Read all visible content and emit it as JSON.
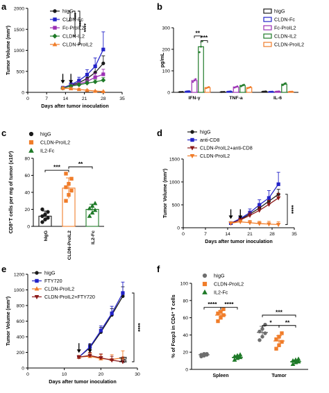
{
  "colors": {
    "black": "#1a1a1a",
    "blue": "#2323c8",
    "purple": "#9b30b4",
    "green": "#1f7a28",
    "orange": "#f07d2a",
    "darkred": "#8c1a1a"
  },
  "chart_data": [
    {
      "panel": "a",
      "type": "line",
      "xlabel": "Days after tumor inoculation",
      "ylabel": "Tumor Volume (mm³)",
      "xlim": [
        0,
        35
      ],
      "ylim": [
        0,
        2000
      ],
      "xticks": [
        "0",
        "7",
        "14",
        "21",
        "28",
        "35"
      ],
      "yticks": [
        "0",
        "500",
        "1000",
        "1500",
        "2000"
      ],
      "x": [
        13,
        16,
        19,
        22,
        25,
        28
      ],
      "arrows_x": [
        13,
        16
      ],
      "significance": [
        "***",
        "***",
        "****"
      ],
      "series": [
        {
          "name": "hIgG",
          "color": "#1a1a1a",
          "marker": "circle",
          "values": [
            110,
            170,
            230,
            330,
            470,
            690
          ],
          "err": [
            20,
            40,
            60,
            80,
            120,
            180
          ]
        },
        {
          "name": "CLDN-Fc",
          "color": "#2323c8",
          "marker": "square",
          "values": [
            110,
            180,
            280,
            420,
            620,
            1020
          ],
          "err": [
            20,
            50,
            80,
            120,
            200,
            420
          ]
        },
        {
          "name": "Fc-ProIL2",
          "color": "#9b30b4",
          "marker": "square",
          "values": [
            100,
            160,
            200,
            260,
            360,
            430
          ],
          "err": [
            20,
            40,
            50,
            70,
            90,
            120
          ]
        },
        {
          "name": "CLDN-IL2",
          "color": "#1f7a28",
          "marker": "diamond",
          "values": [
            100,
            150,
            180,
            220,
            250,
            290
          ],
          "err": [
            20,
            30,
            40,
            50,
            50,
            60
          ]
        },
        {
          "name": "CLDN-ProIL2",
          "color": "#f07d2a",
          "marker": "triangle",
          "values": [
            100,
            90,
            70,
            50,
            30,
            20
          ],
          "err": [
            20,
            20,
            20,
            15,
            10,
            10
          ]
        }
      ]
    },
    {
      "panel": "b",
      "type": "bar",
      "ylabel": "pg/mL",
      "ylim": [
        0,
        300
      ],
      "yticks": [
        "0",
        "100",
        "200",
        "300"
      ],
      "categories": [
        "IFN-γ",
        "TNF-a",
        "IL-6"
      ],
      "significance": [
        "**",
        "***"
      ],
      "series": [
        {
          "name": "hIgG",
          "color": "#1a1a1a",
          "values": [
            2,
            2,
            4
          ]
        },
        {
          "name": "CLDN-Fc",
          "color": "#2323c8",
          "values": [
            5,
            4,
            3
          ]
        },
        {
          "name": "Fc-ProIL2",
          "color": "#9b30b4",
          "values": [
            55,
            25,
            4
          ]
        },
        {
          "name": "CLDN-IL2",
          "color": "#1f7a28",
          "values": [
            212,
            32,
            38
          ]
        },
        {
          "name": "CLDN-ProIL2",
          "color": "#f07d2a",
          "values": [
            22,
            22,
            3
          ]
        }
      ]
    },
    {
      "panel": "c",
      "type": "scatter",
      "ylabel": "CD8⁺T cells per mg of tumor (x10²)",
      "ylim": [
        0,
        80
      ],
      "yticks": [
        "0",
        "20",
        "40",
        "60",
        "80"
      ],
      "categories": [
        "hIgG",
        "CLDN-ProIL2",
        "IL2-Fc"
      ],
      "significance": [
        "***",
        "**"
      ],
      "series": [
        {
          "name": "hIgG",
          "color": "#1a1a1a",
          "marker": "circle",
          "mean": 12,
          "sd": 6,
          "values": [
            5,
            8,
            10,
            12,
            14,
            17,
            20
          ]
        },
        {
          "name": "CLDN-ProIL2",
          "color": "#f07d2a",
          "marker": "square",
          "mean": 45,
          "sd": 12,
          "values": [
            30,
            37,
            42,
            46,
            50,
            56,
            62
          ]
        },
        {
          "name": "IL2-Fc",
          "color": "#1f7a28",
          "marker": "triangle",
          "mean": 20,
          "sd": 6,
          "values": [
            12,
            16,
            19,
            21,
            24,
            27
          ]
        }
      ]
    },
    {
      "panel": "d",
      "type": "line",
      "xlabel": "Days after tumor inoculation",
      "ylabel": "Tumor Volume (mm³)",
      "xlim": [
        0,
        35
      ],
      "ylim": [
        0,
        1500
      ],
      "xticks": [
        "0",
        "7",
        "14",
        "21",
        "28",
        "35"
      ],
      "yticks": [
        "0",
        "500",
        "1000",
        "1500"
      ],
      "x": [
        15,
        18,
        21,
        24,
        27,
        30
      ],
      "arrows_x": [
        15,
        18
      ],
      "significance": [
        "****"
      ],
      "series": [
        {
          "name": "hIgG",
          "color": "#1a1a1a",
          "marker": "circle",
          "values": [
            100,
            180,
            300,
            430,
            580,
            730
          ],
          "err": [
            20,
            40,
            60,
            80,
            100,
            110
          ]
        },
        {
          "name": "anti-CD8",
          "color": "#2323c8",
          "marker": "square",
          "values": [
            100,
            200,
            330,
            500,
            650,
            950
          ],
          "err": [
            20,
            50,
            80,
            110,
            160,
            260
          ]
        },
        {
          "name": "CLDN-ProIL2+anti-CD8",
          "color": "#8c1a1a",
          "marker": "triangle-down",
          "values": [
            100,
            170,
            270,
            380,
            510,
            650
          ],
          "err": [
            20,
            40,
            60,
            80,
            90,
            100
          ]
        },
        {
          "name": "CLDN-ProIL2",
          "color": "#f07d2a",
          "marker": "triangle-down",
          "values": [
            100,
            130,
            110,
            90,
            80,
            70
          ],
          "err": [
            20,
            40,
            50,
            50,
            60,
            60
          ]
        }
      ]
    },
    {
      "panel": "e",
      "type": "line",
      "xlabel": "Days after tumor inoculation",
      "ylabel": "Tumor Volume (mm³)",
      "xlim": [
        0,
        30
      ],
      "ylim": [
        0,
        1200
      ],
      "xticks": [
        "0",
        "10",
        "20",
        "30"
      ],
      "yticks": [
        "0",
        "200",
        "400",
        "600",
        "800",
        "1000",
        "1200"
      ],
      "x": [
        14,
        17,
        20,
        23,
        26
      ],
      "arrows_x": [
        14,
        17
      ],
      "significance": [
        "ns",
        "****"
      ],
      "series": [
        {
          "name": "hIgG",
          "color": "#1a1a1a",
          "marker": "circle",
          "values": [
            140,
            260,
            460,
            680,
            920
          ],
          "err": [
            20,
            40,
            60,
            80,
            120
          ]
        },
        {
          "name": "FTY720",
          "color": "#2323c8",
          "marker": "square",
          "values": [
            140,
            270,
            480,
            700,
            960
          ],
          "err": [
            20,
            40,
            60,
            90,
            140
          ]
        },
        {
          "name": "CLDN-ProIL2",
          "color": "#f07d2a",
          "marker": "triangle",
          "values": [
            140,
            150,
            120,
            110,
            130
          ],
          "err": [
            20,
            40,
            50,
            60,
            90
          ]
        },
        {
          "name": "CLDN-ProIL2+FTY720",
          "color": "#8c1a1a",
          "marker": "triangle-down",
          "values": [
            140,
            160,
            130,
            100,
            80
          ],
          "err": [
            20,
            40,
            50,
            50,
            60
          ]
        }
      ]
    },
    {
      "panel": "f",
      "type": "scatter",
      "ylabel": "% of Foxp3 in CD4⁺ T cells",
      "ylim": [
        0,
        100
      ],
      "yticks": [
        "0",
        "20",
        "40",
        "60",
        "80",
        "100"
      ],
      "categories": [
        "Spleen",
        "Tumor"
      ],
      "significance": [
        "****",
        "****",
        "***",
        "*",
        "**"
      ],
      "series": [
        {
          "name": "hIgG",
          "color": "#6e6e6e",
          "marker": "circle",
          "groups": [
            {
              "mean": 17,
              "sd": 1,
              "values": [
                15,
                16,
                17,
                17,
                18,
                18
              ]
            },
            {
              "mean": 43,
              "sd": 7,
              "values": [
                34,
                38,
                42,
                44,
                47,
                52
              ]
            }
          ]
        },
        {
          "name": "CLDN-ProIL2",
          "color": "#f07d2a",
          "marker": "square",
          "groups": [
            {
              "mean": 63,
              "sd": 5,
              "values": [
                56,
                60,
                63,
                65,
                67,
                70
              ]
            },
            {
              "mean": 33,
              "sd": 6,
              "values": [
                24,
                28,
                32,
                35,
                38,
                42
              ]
            }
          ]
        },
        {
          "name": "IL2-Fc",
          "color": "#1f7a28",
          "marker": "triangle",
          "groups": [
            {
              "mean": 14,
              "sd": 2,
              "values": [
                11,
                13,
                14,
                15,
                16,
                17
              ]
            },
            {
              "mean": 9,
              "sd": 2,
              "values": [
                6,
                8,
                9,
                10,
                11,
                12
              ]
            }
          ]
        }
      ]
    }
  ]
}
